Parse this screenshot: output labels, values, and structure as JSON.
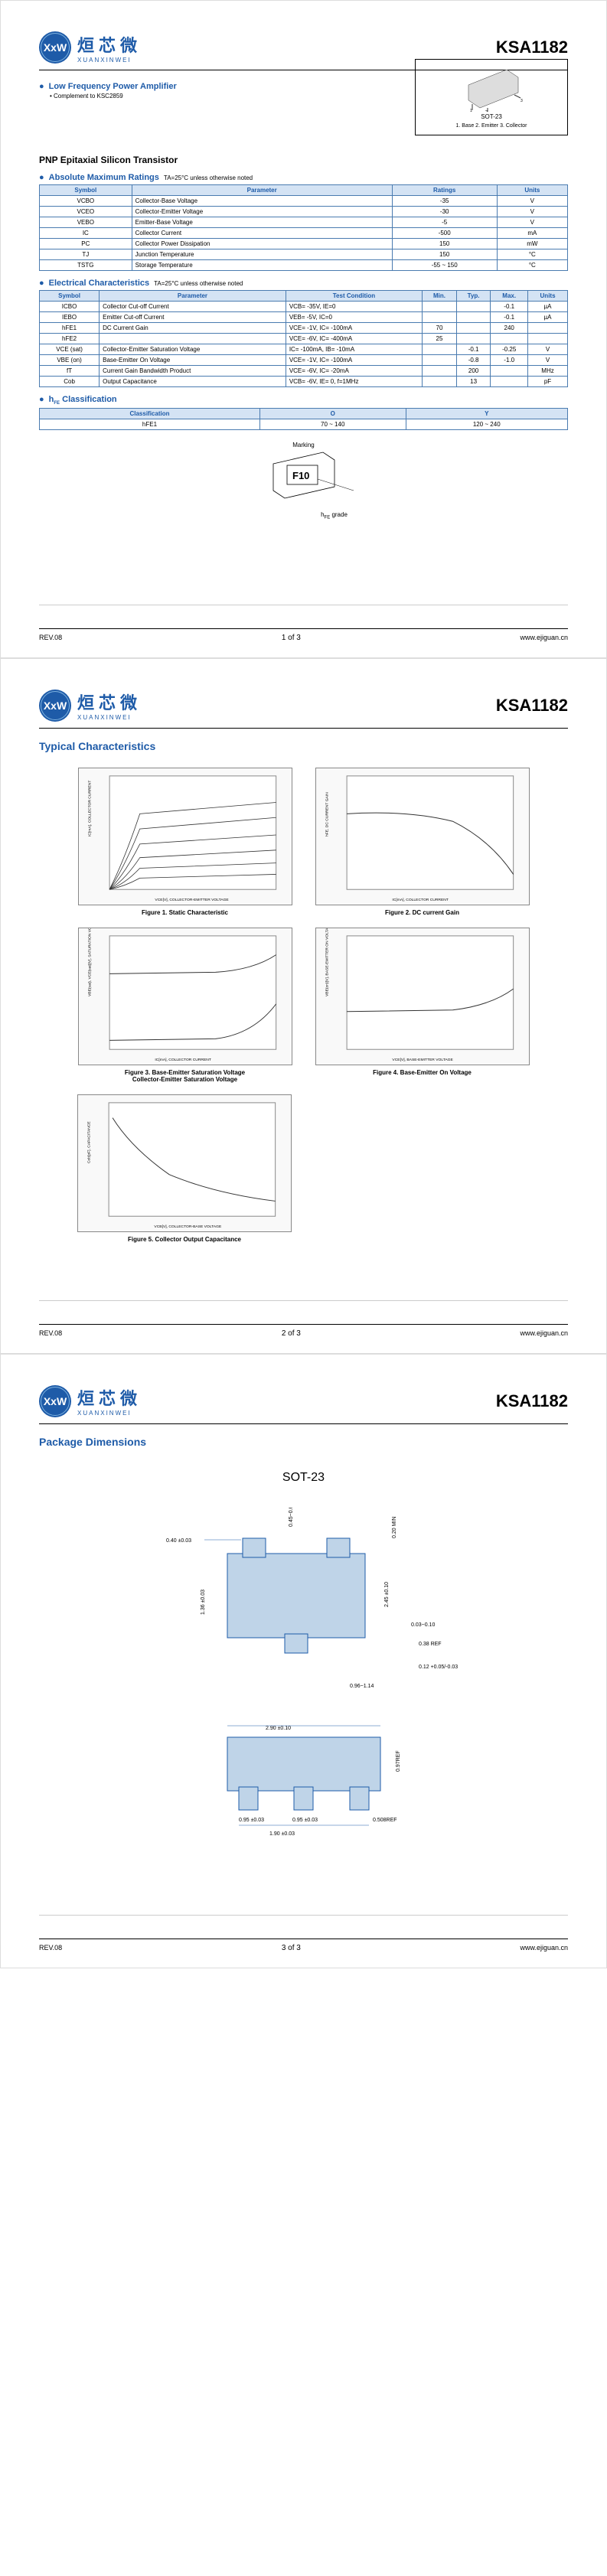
{
  "part_number": "KSA1182",
  "logo_cn": "烜芯微",
  "logo_en": "XUANXINWEI",
  "logo_mark": "XxW",
  "feature1": "Low Frequency Power Amplifier",
  "feature1_sub": "Complement to KSC2859",
  "transistor_type": "PNP Epitaxial Silicon Transistor",
  "package_type": "SOT-23",
  "pinout": "1. Base   2. Emitter   3. Collector",
  "section_absmax": "Absolute Maximum Ratings",
  "section_elec": "Electrical Characteristics",
  "section_hfe": "hFE Classification",
  "ta_note": "TA=25°C unless otherwise noted",
  "absmax_headers": [
    "Symbol",
    "Parameter",
    "Ratings",
    "Units"
  ],
  "absmax_rows": [
    [
      "VCBO",
      "Collector-Base Voltage",
      "-35",
      "V"
    ],
    [
      "VCEO",
      "Collector-Emitter Voltage",
      "-30",
      "V"
    ],
    [
      "VEBO",
      "Emitter-Base Voltage",
      "-5",
      "V"
    ],
    [
      "IC",
      "Collector Current",
      "-500",
      "mA"
    ],
    [
      "PC",
      "Collector Power Dissipation",
      "150",
      "mW"
    ],
    [
      "TJ",
      "Junction Temperature",
      "150",
      "°C"
    ],
    [
      "TSTG",
      "Storage Temperature",
      "-55 ~ 150",
      "°C"
    ]
  ],
  "elec_headers": [
    "Symbol",
    "Parameter",
    "Test Condition",
    "Min.",
    "Typ.",
    "Max.",
    "Units"
  ],
  "elec_rows": [
    [
      "ICBO",
      "Collector Cut-off Current",
      "VCB= -35V, IE=0",
      "",
      "",
      "-0.1",
      "µA"
    ],
    [
      "IEBO",
      "Emitter Cut-off Current",
      "VEB= -5V, IC=0",
      "",
      "",
      "-0.1",
      "µA"
    ],
    [
      "hFE1",
      "DC Current Gain",
      "VCE= -1V, IC= -100mA",
      "70",
      "",
      "240",
      ""
    ],
    [
      "hFE2",
      "",
      "VCE= -6V, IC= -400mA",
      "25",
      "",
      "",
      ""
    ],
    [
      "VCE (sat)",
      "Collector-Emitter Saturation Voltage",
      "IC= -100mA, IB= -10mA",
      "",
      "-0.1",
      "-0.25",
      "V"
    ],
    [
      "VBE (on)",
      "Base-Emitter On Voltage",
      "VCE= -1V, IC= -100mA",
      "",
      "-0.8",
      "-1.0",
      "V"
    ],
    [
      "fT",
      "Current Gain Bandwidth Product",
      "VCE= -6V, IC= -20mA",
      "",
      "200",
      "",
      "MHz"
    ],
    [
      "Cob",
      "Output Capacitance",
      "VCB= -6V, IE= 0, f=1MHz",
      "",
      "13",
      "",
      "pF"
    ]
  ],
  "hfe_headers": [
    "Classification",
    "O",
    "Y"
  ],
  "hfe_rows": [
    [
      "hFE1",
      "70 ~ 140",
      "120 ~ 240"
    ]
  ],
  "marking_label": "Marking",
  "marking_code": "F10",
  "hfe_grade_label": "hFE grade",
  "rev": "REV.08",
  "page1": "1  of  3",
  "page2": "2  of  3",
  "page3": "3  of  3",
  "website": "www.ejiguan.cn",
  "typ_char_title": "Typical Characteristics",
  "fig1": "Figure 1. Static Characteristic",
  "fig2": "Figure 2. DC current Gain",
  "fig3": "Figure 3. Base-Emitter Saturation Voltage\nCollector-Emitter Saturation Voltage",
  "fig4": "Figure 4. Base-Emitter On Voltage",
  "fig5": "Figure 5. Collector Output Capacitance",
  "chart1_ylabel": "IC[mA], COLLECTOR CURRENT",
  "chart1_xlabel": "VCE[V], COLLECTOR-EMITTER VOLTAGE",
  "chart2_ylabel": "hFE, DC CURRENT GAIN",
  "chart2_xlabel": "IC[mA], COLLECTOR CURRENT",
  "chart3_ylabel": "VBE(sat), VCE(sat)[V], SATURATION VOLTAGE",
  "chart3_xlabel": "IC[mA], COLLECTOR CURRENT",
  "chart4_ylabel": "VBE(on)[V], BASE-EMITTER ON VOLTAGE",
  "chart4_xlabel": "VCE[V], BASE-EMITTER VOLTAGE",
  "chart5_ylabel": "Cob[pF], CAPACITANCE",
  "chart5_xlabel": "VCB[V], COLLECTOR-BASE VOLTAGE",
  "pkg_dim_title": "Package Dimensions",
  "pkg_name": "SOT-23",
  "dims": {
    "d1": "0.40 ±0.03",
    "d2": "0.45~0.60",
    "d3": "0.20 MIN",
    "d4": "1.36 ±0.03",
    "d5": "2.45 ±0.10",
    "d6": "0.03~0.10",
    "d7": "0.38 REF",
    "d8": "0.12 +0.05/-0.03",
    "d9": "0.96~1.14",
    "d10": "2.90 ±0.10",
    "d11": "0.97REF",
    "d12": "0.95 ±0.03",
    "d13": "0.95 ±0.03",
    "d14": "1.90 ±0.03",
    "d15": "0.508REF"
  }
}
